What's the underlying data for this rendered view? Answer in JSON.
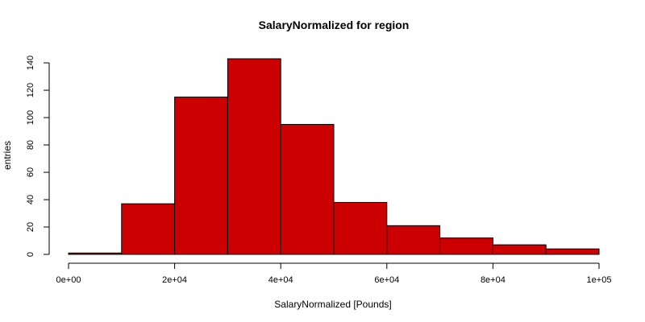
{
  "chart_data": {
    "type": "bar",
    "title": "SalaryNormalized for region",
    "xlabel": "SalaryNormalized [Pounds]",
    "ylabel": "entries",
    "bin_edges": [
      0,
      10000,
      20000,
      30000,
      40000,
      50000,
      60000,
      70000,
      80000,
      90000,
      100000
    ],
    "values": [
      1,
      37,
      115,
      143,
      95,
      38,
      21,
      12,
      7,
      4
    ],
    "xlim": [
      0,
      100000
    ],
    "ylim": [
      0,
      143
    ],
    "x_ticks": [
      {
        "value": 0,
        "label": "0e+00"
      },
      {
        "value": 20000,
        "label": "2e+04"
      },
      {
        "value": 40000,
        "label": "4e+04"
      },
      {
        "value": 60000,
        "label": "6e+04"
      },
      {
        "value": 80000,
        "label": "8e+04"
      },
      {
        "value": 100000,
        "label": "1e+05"
      }
    ],
    "y_ticks": [
      {
        "value": 0,
        "label": "0"
      },
      {
        "value": 20,
        "label": "20"
      },
      {
        "value": 40,
        "label": "40"
      },
      {
        "value": 60,
        "label": "60"
      },
      {
        "value": 80,
        "label": "80"
      },
      {
        "value": 100,
        "label": "100"
      },
      {
        "value": 120,
        "label": "120"
      },
      {
        "value": 140,
        "label": "140"
      }
    ],
    "bar_color": "#cc0000",
    "grid": false,
    "legend": "none"
  }
}
